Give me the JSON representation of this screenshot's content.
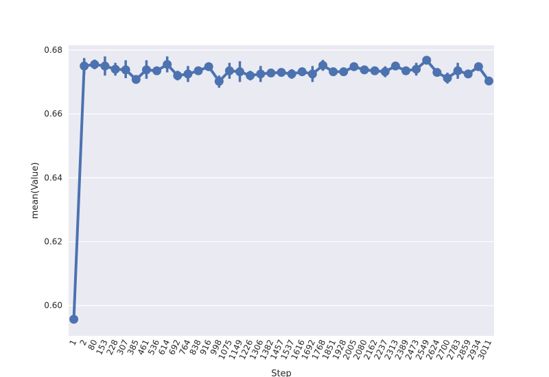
{
  "chart_data": {
    "type": "line",
    "xlabel": "Step",
    "ylabel": "mean(Value)",
    "ylim": [
      0.5905,
      0.6815
    ],
    "yticks": [
      0.6,
      0.62,
      0.64,
      0.66,
      0.68
    ],
    "ytick_labels": [
      "0.60",
      "0.62",
      "0.64",
      "0.66",
      "0.68"
    ],
    "grid": true,
    "background_color": "#EAEAF2",
    "series_color": "#4C72B0",
    "categories": [
      "1",
      "2",
      "80",
      "153",
      "228",
      "307",
      "385",
      "461",
      "536",
      "614",
      "692",
      "764",
      "838",
      "916",
      "998",
      "1075",
      "1149",
      "1226",
      "1306",
      "1382",
      "1457",
      "1537",
      "1616",
      "1692",
      "1768",
      "1851",
      "1928",
      "2005",
      "2080",
      "2162",
      "2237",
      "2313",
      "2389",
      "2473",
      "2549",
      "2624",
      "2700",
      "2783",
      "2859",
      "2934",
      "3011"
    ],
    "values": [
      0.5957,
      0.675,
      0.6755,
      0.675,
      0.674,
      0.6738,
      0.6708,
      0.6738,
      0.6735,
      0.6755,
      0.672,
      0.6725,
      0.6735,
      0.6748,
      0.6702,
      0.6735,
      0.6732,
      0.672,
      0.6725,
      0.6728,
      0.673,
      0.6725,
      0.6732,
      0.6725,
      0.6752,
      0.6732,
      0.6732,
      0.6748,
      0.6738,
      0.6735,
      0.6732,
      0.675,
      0.6735,
      0.674,
      0.6768,
      0.673,
      0.6712,
      0.6735,
      0.6725,
      0.6748,
      0.6703
    ],
    "ci_low": [
      0.5957,
      0.6725,
      0.674,
      0.672,
      0.672,
      0.6712,
      0.67,
      0.671,
      0.6725,
      0.673,
      0.6705,
      0.67,
      0.6725,
      0.674,
      0.6682,
      0.671,
      0.67,
      0.6705,
      0.67,
      0.672,
      0.672,
      0.671,
      0.6722,
      0.67,
      0.6735,
      0.6722,
      0.6722,
      0.674,
      0.6728,
      0.6725,
      0.6715,
      0.674,
      0.6725,
      0.672,
      0.6758,
      0.6722,
      0.6695,
      0.671,
      0.6715,
      0.6738,
      0.6703
    ],
    "ci_high": [
      0.5957,
      0.6775,
      0.677,
      0.678,
      0.676,
      0.6768,
      0.6716,
      0.6768,
      0.6745,
      0.678,
      0.6735,
      0.675,
      0.6745,
      0.6756,
      0.672,
      0.676,
      0.6765,
      0.6735,
      0.675,
      0.6736,
      0.674,
      0.674,
      0.6742,
      0.675,
      0.6769,
      0.6742,
      0.6742,
      0.6756,
      0.6748,
      0.6745,
      0.6749,
      0.676,
      0.6745,
      0.676,
      0.6778,
      0.6738,
      0.6729,
      0.676,
      0.6735,
      0.6758,
      0.6703
    ]
  }
}
